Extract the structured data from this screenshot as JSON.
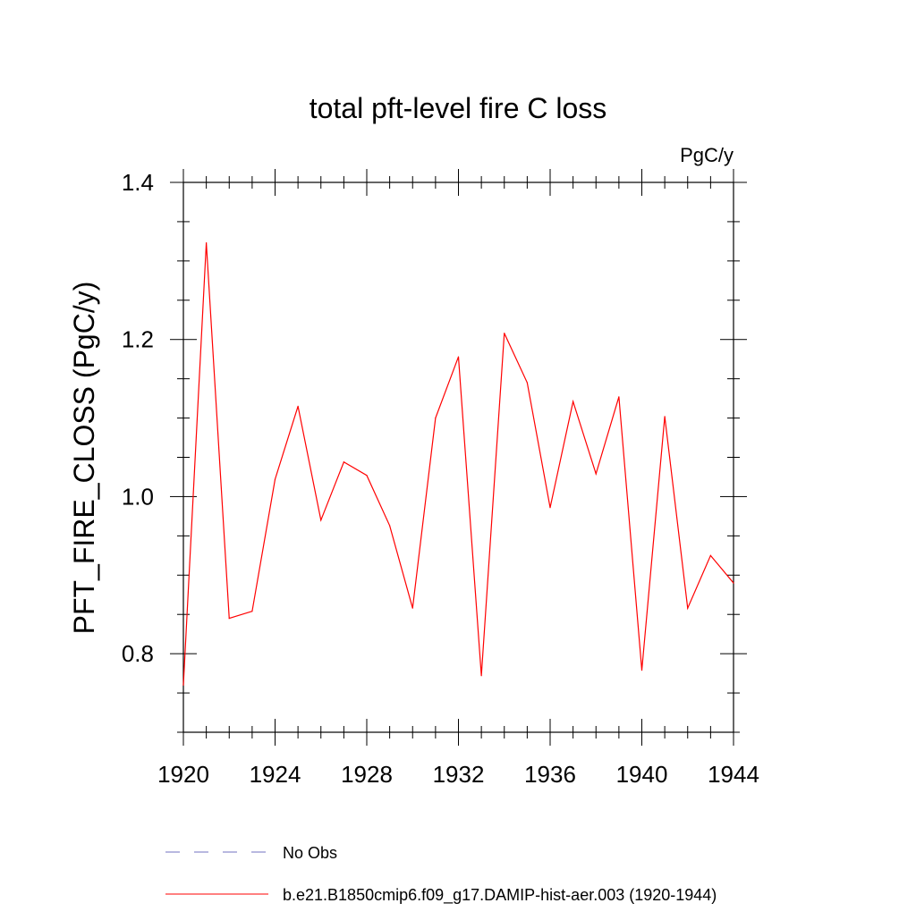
{
  "chart_data": {
    "type": "line",
    "title": "total pft-level fire C loss",
    "units_label": "PgC/y",
    "ylabel": "PFT_FIRE_CLOSS  (PgC/y)",
    "xlabel": "",
    "xlim": [
      1920,
      1944
    ],
    "ylim": [
      0.7,
      1.4
    ],
    "x_ticks": [
      "1920",
      "1924",
      "1928",
      "1932",
      "1936",
      "1940",
      "1944"
    ],
    "y_ticks": [
      "0.8",
      "1.0",
      "1.2",
      "1.4"
    ],
    "x": [
      1920,
      1921,
      1922,
      1923,
      1924,
      1925,
      1926,
      1927,
      1928,
      1929,
      1930,
      1931,
      1932,
      1933,
      1934,
      1935,
      1936,
      1937,
      1938,
      1939,
      1940,
      1941,
      1942,
      1943,
      1944
    ],
    "series": [
      {
        "name": "b.e21.B1850cmip6.f09_g17.DAMIP-hist-aer.003 (1920-1944)",
        "color": "#ff0000",
        "values": [
          0.76,
          1.323,
          0.845,
          0.854,
          1.022,
          1.115,
          0.97,
          1.044,
          1.027,
          0.963,
          0.858,
          1.1,
          1.178,
          0.772,
          1.208,
          1.145,
          0.986,
          1.121,
          1.029,
          1.127,
          0.779,
          1.102,
          0.858,
          0.925,
          0.89
        ]
      }
    ],
    "legend": {
      "placement": "bottom",
      "entries": [
        {
          "label": "No Obs",
          "color": "#7070c0",
          "style": "dashed"
        },
        {
          "label": "b.e21.B1850cmip6.f09_g17.DAMIP-hist-aer.003 (1920-1944)",
          "color": "#ff0000",
          "style": "solid"
        }
      ]
    },
    "grid": false
  }
}
